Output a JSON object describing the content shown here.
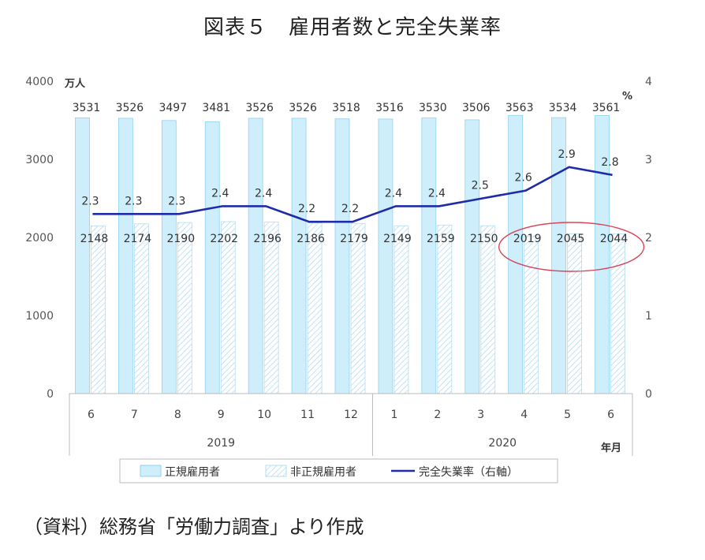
{
  "title": "図表５　雇用者数と完全失業率",
  "source": "（資料）総務省「労働力調査」より作成",
  "chart_data": {
    "type": "bar",
    "categories": [
      "6",
      "7",
      "8",
      "9",
      "10",
      "11",
      "12",
      "1",
      "2",
      "3",
      "4",
      "5",
      "6"
    ],
    "year_groups": [
      {
        "label": "2019",
        "start": 0,
        "end": 6
      },
      {
        "label": "2020",
        "start": 7,
        "end": 12
      }
    ],
    "series": [
      {
        "name": "正規雇用者",
        "type": "bar",
        "axis": "left",
        "values": [
          3531,
          3526,
          3497,
          3481,
          3526,
          3526,
          3518,
          3516,
          3530,
          3506,
          3563,
          3534,
          3561
        ]
      },
      {
        "name": "非正規雇用者",
        "type": "bar",
        "axis": "left",
        "values": [
          2148,
          2174,
          2190,
          2202,
          2196,
          2186,
          2179,
          2149,
          2159,
          2150,
          2019,
          2045,
          2044
        ]
      },
      {
        "name": "完全失業率（右軸）",
        "type": "line",
        "axis": "right",
        "values": [
          2.3,
          2.3,
          2.3,
          2.4,
          2.4,
          2.2,
          2.2,
          2.4,
          2.4,
          2.5,
          2.6,
          2.9,
          2.8
        ]
      }
    ],
    "left_axis": {
      "unit": "万人",
      "ylim": [
        0,
        4000
      ],
      "ticks": [
        0,
        1000,
        2000,
        3000,
        4000
      ]
    },
    "right_axis": {
      "unit": "%",
      "ylim": [
        0,
        4
      ],
      "ticks": [
        0,
        1,
        2,
        3,
        4
      ]
    },
    "x_unit": "年月",
    "highlight": {
      "indices": [
        10,
        11,
        12
      ]
    },
    "colors": {
      "regular": "#cdeefa",
      "regular_stroke": "#8fd3f0",
      "nonregular_stroke": "#b5dcef",
      "line": "#1f2ca8",
      "highlight": "#d9455a"
    }
  }
}
